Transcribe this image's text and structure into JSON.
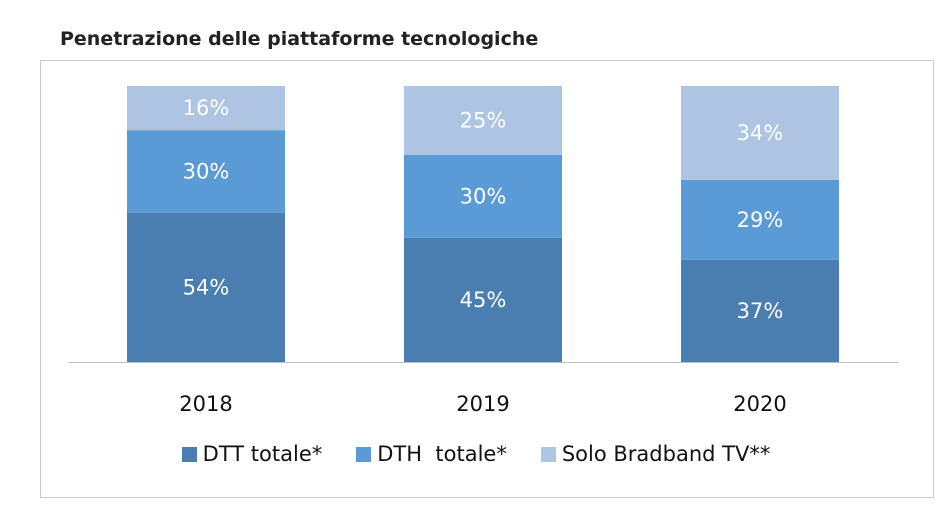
{
  "chart_data": {
    "type": "bar",
    "stacked": true,
    "percent_stacked": true,
    "title": "Penetrazione delle piattaforme tecnologiche",
    "categories": [
      "2018",
      "2019",
      "2020"
    ],
    "series": [
      {
        "name": "DTT totale*",
        "values": [
          54,
          45,
          37
        ],
        "color": "#4a7eb0"
      },
      {
        "name": "DTH  totale*",
        "values": [
          30,
          30,
          29
        ],
        "color": "#5b9bd5"
      },
      {
        "name": "Solo Bradband TV**",
        "values": [
          16,
          25,
          34
        ],
        "color": "#adc4e3"
      }
    ],
    "value_suffix": "%",
    "ylim": [
      0,
      100
    ],
    "grid": false,
    "legend_position": "bottom"
  }
}
